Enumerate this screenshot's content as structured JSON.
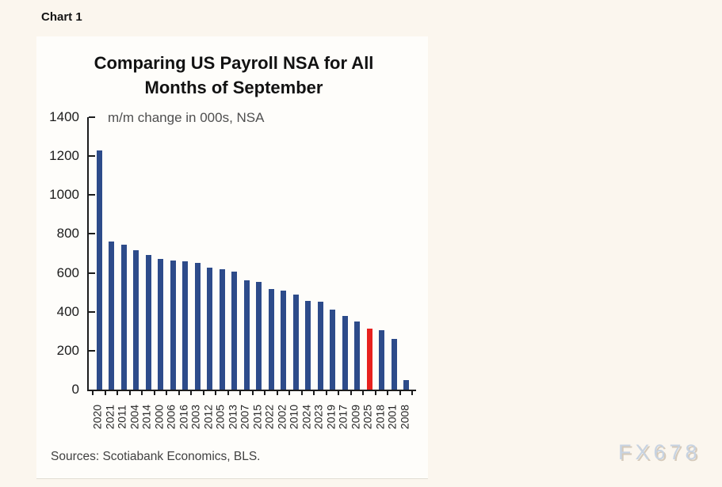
{
  "page": {
    "chart_label": "Chart 1",
    "watermark": "FX678"
  },
  "chart_data": {
    "type": "bar",
    "title": "Comparing US Payroll NSA for All Months of September",
    "title_lines": [
      "Comparing US Payroll NSA for All",
      "Months of September"
    ],
    "subtitle": "m/m change in 000s, NSA",
    "source": "Sources: Scotiabank Economics, BLS.",
    "categories": [
      "2020",
      "2021",
      "2011",
      "2004",
      "2014",
      "2000",
      "2006",
      "2016",
      "2003",
      "2012",
      "2005",
      "2013",
      "2007",
      "2015",
      "2022",
      "2002",
      "2010",
      "2024",
      "2023",
      "2019",
      "2017",
      "2009",
      "2025",
      "2018",
      "2001",
      "2008"
    ],
    "values": [
      1230,
      760,
      745,
      715,
      690,
      670,
      665,
      660,
      650,
      625,
      620,
      605,
      560,
      555,
      515,
      510,
      490,
      455,
      450,
      410,
      380,
      350,
      315,
      305,
      260,
      50
    ],
    "highlight_category": "2025",
    "bar_color": "#2d4b8a",
    "highlight_color": "#e7211e",
    "xlabel": "",
    "ylabel": "",
    "ylim": [
      0,
      1400
    ],
    "ytick_step": 200,
    "yticks": [
      0,
      200,
      400,
      600,
      800,
      1000,
      1200,
      1400
    ],
    "grid": false,
    "legend": false
  }
}
